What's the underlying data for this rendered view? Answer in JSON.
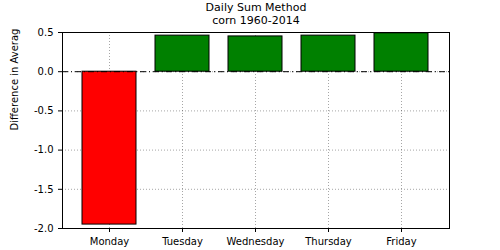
{
  "chart_data": {
    "type": "bar",
    "title": "Daily Sum Method",
    "subtitle": "corn 1960-2014",
    "y_label": "Difference in Average Trade",
    "categories": [
      "Monday",
      "Tuesday",
      "Wednesday",
      "Thursday",
      "Friday"
    ],
    "values": [
      -1.95,
      0.46,
      0.45,
      0.46,
      0.49
    ],
    "colors": [
      "#ff0000",
      "#008000",
      "#008000",
      "#008000",
      "#008000"
    ],
    "ylim": [
      -2.0,
      0.5
    ],
    "yticks": [
      {
        "value": -2.0,
        "label": "-2.0"
      },
      -1.5,
      {
        "value": -1.0,
        "label": "-1.0"
      },
      -0.5,
      {
        "value": 0.0,
        "label": "0.0"
      },
      0.5
    ],
    "grid": true
  }
}
